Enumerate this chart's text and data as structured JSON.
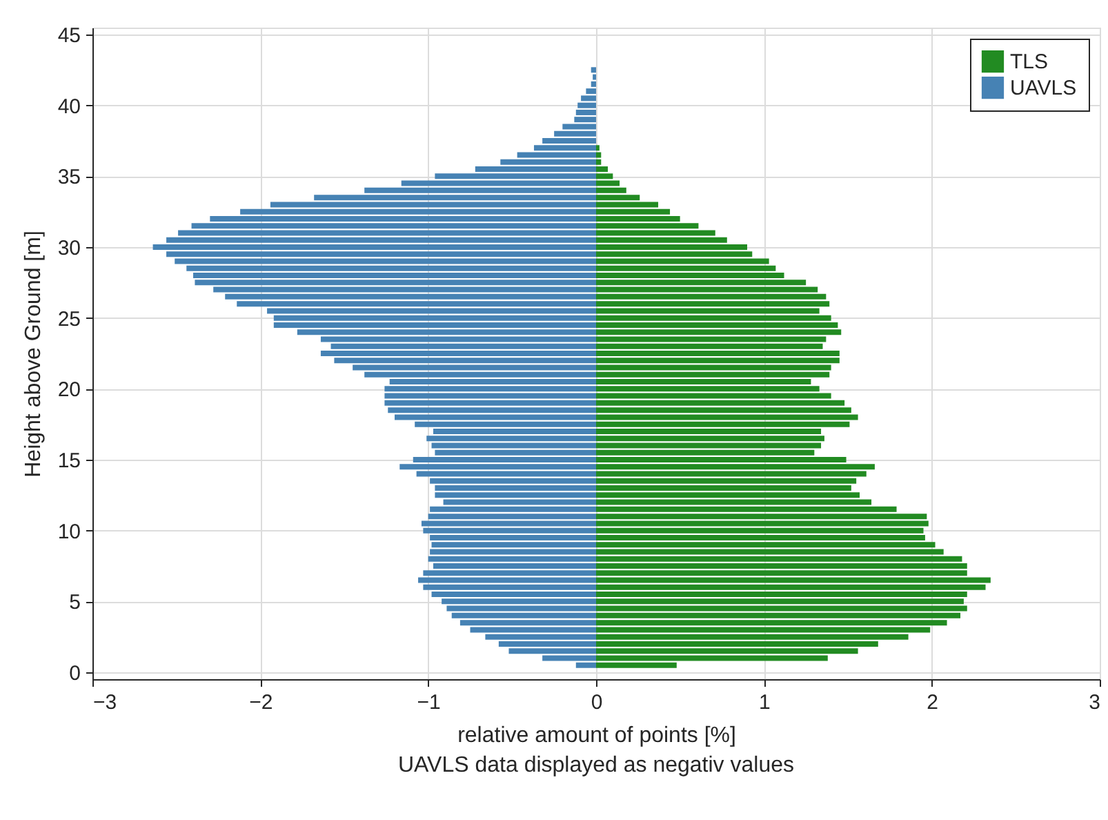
{
  "chart_data": {
    "type": "bar",
    "orientation": "horizontal",
    "xlabel": "relative amount of points [%]",
    "ylabel": "Height above Ground [m]",
    "annotations": [
      "UAVLS data displayed as negativ values"
    ],
    "x": [
      0.5,
      1.0,
      1.5,
      2.0,
      2.5,
      3.0,
      3.5,
      4.0,
      4.5,
      5.0,
      5.5,
      6.0,
      6.5,
      7.0,
      7.5,
      8.0,
      8.5,
      9.0,
      9.5,
      10.0,
      10.5,
      11.0,
      11.5,
      12.0,
      12.5,
      13.0,
      13.5,
      14.0,
      14.5,
      15.0,
      15.5,
      16.0,
      16.5,
      17.0,
      17.5,
      18.0,
      18.5,
      19.0,
      19.5,
      20.0,
      20.5,
      21.0,
      21.5,
      22.0,
      22.5,
      23.0,
      23.5,
      24.0,
      24.5,
      25.0,
      25.5,
      26.0,
      26.5,
      27.0,
      27.5,
      28.0,
      28.5,
      29.0,
      29.5,
      30.0,
      30.5,
      31.0,
      31.5,
      32.0,
      32.5,
      33.0,
      33.5,
      34.0,
      34.5,
      35.0,
      35.5,
      36.0,
      36.5,
      37.0,
      37.5,
      38.0,
      38.5,
      39.0,
      39.5,
      40.0,
      40.5,
      41.0,
      41.5,
      42.0,
      42.5
    ],
    "series": [
      {
        "name": "TLS",
        "color": "#228b22",
        "values": [
          0.48,
          1.38,
          1.56,
          1.68,
          1.86,
          1.99,
          2.09,
          2.17,
          2.21,
          2.19,
          2.21,
          2.32,
          2.35,
          2.21,
          2.21,
          2.18,
          2.07,
          2.02,
          1.96,
          1.95,
          1.98,
          1.97,
          1.79,
          1.64,
          1.57,
          1.52,
          1.55,
          1.61,
          1.66,
          1.49,
          1.3,
          1.34,
          1.36,
          1.34,
          1.51,
          1.56,
          1.52,
          1.48,
          1.4,
          1.33,
          1.28,
          1.39,
          1.4,
          1.45,
          1.45,
          1.35,
          1.37,
          1.46,
          1.44,
          1.4,
          1.33,
          1.39,
          1.37,
          1.32,
          1.25,
          1.12,
          1.07,
          1.03,
          0.93,
          0.9,
          0.78,
          0.71,
          0.61,
          0.5,
          0.44,
          0.37,
          0.26,
          0.18,
          0.14,
          0.1,
          0.07,
          0.03,
          0.03,
          0.02,
          null,
          null,
          null,
          null,
          null,
          null,
          null,
          null,
          null,
          null,
          null
        ]
      },
      {
        "name": "UAVLS",
        "color": "#4682b4",
        "values": [
          -0.12,
          -0.32,
          -0.52,
          -0.58,
          -0.66,
          -0.75,
          -0.81,
          -0.86,
          -0.89,
          -0.92,
          -0.98,
          -1.03,
          -1.06,
          -1.03,
          -0.97,
          -1.0,
          -0.99,
          -0.98,
          -0.99,
          -1.03,
          -1.04,
          -1.0,
          -0.99,
          -0.91,
          -0.96,
          -0.96,
          -0.99,
          -1.07,
          -1.17,
          -1.09,
          -0.96,
          -0.98,
          -1.01,
          -0.97,
          -1.08,
          -1.2,
          -1.24,
          -1.26,
          -1.26,
          -1.26,
          -1.23,
          -1.38,
          -1.45,
          -1.56,
          -1.64,
          -1.58,
          -1.64,
          -1.78,
          -1.92,
          -1.92,
          -1.96,
          -2.14,
          -2.21,
          -2.28,
          -2.39,
          -2.4,
          -2.44,
          -2.51,
          -2.56,
          -2.64,
          -2.56,
          -2.49,
          -2.41,
          -2.3,
          -2.12,
          -1.94,
          -1.68,
          -1.38,
          -1.16,
          -0.96,
          -0.72,
          -0.57,
          -0.47,
          -0.37,
          -0.32,
          -0.25,
          -0.2,
          -0.13,
          -0.12,
          -0.11,
          -0.09,
          -0.06,
          -0.03,
          -0.02,
          -0.03
        ]
      }
    ],
    "xlim": [
      -3,
      3
    ],
    "xticks": [
      -3,
      -2,
      -1,
      0,
      1,
      2,
      3
    ],
    "ylim": [
      0,
      45
    ],
    "yticks": [
      0,
      5,
      10,
      15,
      20,
      25,
      30,
      35,
      40,
      45
    ],
    "grid": true,
    "legend": "top right",
    "stacked": true
  }
}
